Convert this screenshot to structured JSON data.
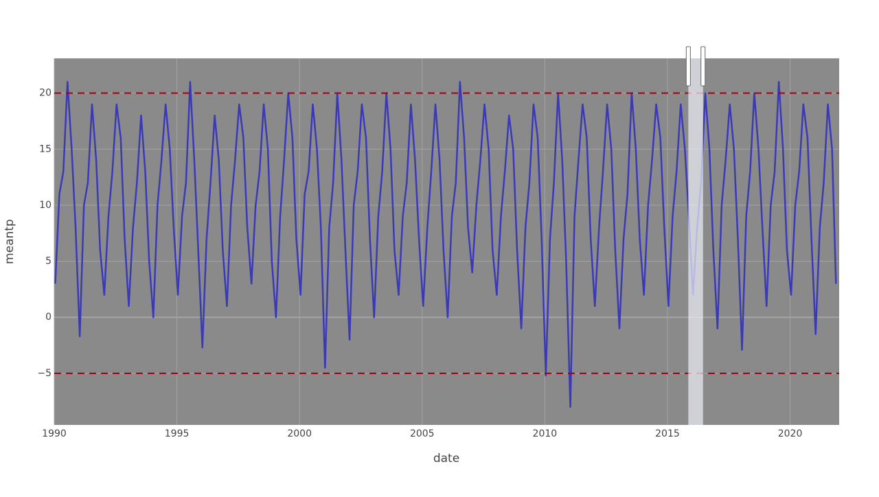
{
  "chart_data": {
    "type": "line",
    "x_title": "date",
    "y_title": "meantp",
    "xlim": [
      1990,
      2022
    ],
    "xticks": [
      1990,
      1995,
      2000,
      2005,
      2010,
      2015,
      2020
    ],
    "ylim": [
      -9.6,
      23.1
    ],
    "yticks": [
      20,
      15,
      10,
      5,
      0,
      {
        "value": -5,
        "label": "−5"
      }
    ],
    "grid": true,
    "color": "#3a3ab8",
    "background": "#8a8a8a",
    "hlines": [
      {
        "y": 20,
        "color": "#a00010"
      },
      {
        "y": -5,
        "color": "#a00010"
      }
    ],
    "highlight_x": [
      2015.85,
      2016.45
    ],
    "x": [
      1990.04,
      1990.21,
      1990.37,
      1990.54,
      1990.71,
      1990.87,
      1991.04,
      1991.21,
      1991.37,
      1991.54,
      1991.71,
      1991.87,
      1992.04,
      1992.21,
      1992.37,
      1992.54,
      1992.71,
      1992.87,
      1993.04,
      1993.21,
      1993.37,
      1993.54,
      1993.71,
      1993.87,
      1994.04,
      1994.21,
      1994.37,
      1994.54,
      1994.71,
      1994.87,
      1995.04,
      1995.21,
      1995.37,
      1995.54,
      1995.71,
      1995.87,
      1996.04,
      1996.21,
      1996.37,
      1996.54,
      1996.71,
      1996.87,
      1997.04,
      1997.21,
      1997.37,
      1997.54,
      1997.71,
      1997.87,
      1998.04,
      1998.21,
      1998.37,
      1998.54,
      1998.71,
      1998.87,
      1999.04,
      1999.21,
      1999.37,
      1999.54,
      1999.71,
      1999.87,
      2000.04,
      2000.21,
      2000.37,
      2000.54,
      2000.71,
      2000.87,
      2001.04,
      2001.21,
      2001.37,
      2001.54,
      2001.71,
      2001.87,
      2002.04,
      2002.21,
      2002.37,
      2002.54,
      2002.71,
      2002.87,
      2003.04,
      2003.21,
      2003.37,
      2003.54,
      2003.71,
      2003.87,
      2004.04,
      2004.21,
      2004.37,
      2004.54,
      2004.71,
      2004.87,
      2005.04,
      2005.21,
      2005.37,
      2005.54,
      2005.71,
      2005.87,
      2006.04,
      2006.21,
      2006.37,
      2006.54,
      2006.71,
      2006.87,
      2007.04,
      2007.21,
      2007.37,
      2007.54,
      2007.71,
      2007.87,
      2008.04,
      2008.21,
      2008.37,
      2008.54,
      2008.71,
      2008.87,
      2009.04,
      2009.21,
      2009.37,
      2009.54,
      2009.71,
      2009.87,
      2010.04,
      2010.21,
      2010.37,
      2010.54,
      2010.71,
      2010.87,
      2011.04,
      2011.21,
      2011.37,
      2011.54,
      2011.71,
      2011.87,
      2012.04,
      2012.21,
      2012.37,
      2012.54,
      2012.71,
      2012.87,
      2013.04,
      2013.21,
      2013.37,
      2013.54,
      2013.71,
      2013.87,
      2014.04,
      2014.21,
      2014.37,
      2014.54,
      2014.71,
      2014.87,
      2015.04,
      2015.21,
      2015.37,
      2015.54,
      2015.71,
      2015.87,
      2016.04,
      2016.21,
      2016.37,
      2016.54,
      2016.71,
      2016.87,
      2017.04,
      2017.21,
      2017.37,
      2017.54,
      2017.71,
      2017.87,
      2018.04,
      2018.21,
      2018.37,
      2018.54,
      2018.71,
      2018.87,
      2019.04,
      2019.21,
      2019.37,
      2019.54,
      2019.71,
      2019.87,
      2020.04,
      2020.21,
      2020.37,
      2020.54,
      2020.71,
      2020.87,
      2021.04,
      2021.21,
      2021.37,
      2021.54,
      2021.71,
      2021.87
    ],
    "values": [
      3,
      11,
      13,
      21,
      15,
      8,
      -1.7,
      10,
      12,
      19,
      14,
      6,
      2,
      9,
      13,
      19,
      16,
      7,
      1,
      8,
      12,
      18,
      13,
      5,
      0,
      10,
      14,
      19,
      15,
      8,
      2,
      9,
      12,
      21,
      14,
      6,
      -2.7,
      7,
      12,
      18,
      14,
      6,
      1,
      10,
      14,
      19,
      16,
      8,
      3,
      10,
      13,
      19,
      15,
      5,
      0,
      9,
      14,
      20,
      16,
      7,
      2,
      11,
      13,
      19,
      15,
      8,
      -4.5,
      8,
      12,
      20,
      14,
      6,
      -2,
      10,
      13,
      19,
      16,
      7,
      0,
      9,
      13,
      20,
      15,
      6,
      2,
      9,
      12,
      19,
      14,
      7,
      1,
      8,
      13,
      19,
      14,
      6,
      0,
      9,
      12,
      21,
      16,
      8,
      4,
      10,
      14,
      19,
      15,
      6,
      2,
      9,
      13,
      18,
      15,
      6,
      -1,
      8,
      12,
      19,
      16,
      7,
      -5.2,
      7,
      12,
      20,
      14,
      5,
      -8,
      9,
      14,
      19,
      16,
      7,
      1,
      8,
      13,
      19,
      15,
      6,
      -1,
      7,
      11,
      20,
      15,
      7,
      2,
      10,
      14,
      19,
      16,
      8,
      1,
      9,
      13,
      19,
      15,
      9,
      2,
      8,
      12,
      20,
      15,
      6,
      -1,
      10,
      14,
      19,
      15,
      7,
      -2.9,
      9,
      13,
      20,
      15,
      8,
      1,
      10,
      13,
      21,
      15,
      6,
      2,
      10,
      13,
      19,
      16,
      7,
      -1.5,
      8,
      12,
      19,
      15,
      3
    ]
  }
}
